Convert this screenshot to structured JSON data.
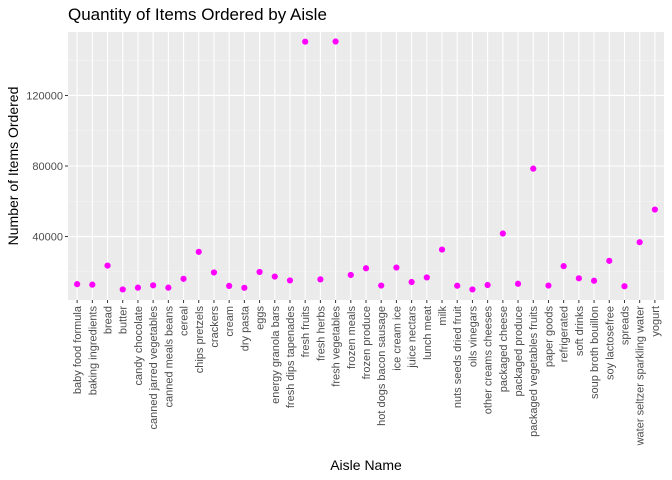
{
  "colors": {
    "panel": "#ebebeb",
    "grid_major": "#ffffff",
    "grid_minor": "#f4f4f4",
    "point": "#ff00ff",
    "tick": "#333333"
  },
  "chart_data": {
    "type": "scatter",
    "title": "Quantity of Items Ordered by Aisle",
    "xlabel": "Aisle Name",
    "ylabel": "Number of Items Ordered",
    "ylim": [
      4000,
      156000
    ],
    "yticks": [
      40000,
      80000,
      120000
    ],
    "ytick_labels": [
      "40000",
      "80000",
      "120000"
    ],
    "grid": true,
    "categories": [
      "baby food formula",
      "baking ingredients",
      "bread",
      "butter",
      "candy chocolate",
      "canned jarred vegetables",
      "canned meals beans",
      "cereal",
      "chips pretzels",
      "crackers",
      "cream",
      "dry pasta",
      "eggs",
      "energy granola bars",
      "fresh dips tapenades",
      "fresh fruits",
      "fresh herbs",
      "fresh vegetables",
      "frozen meals",
      "frozen produce",
      "hot dogs bacon sausage",
      "ice cream ice",
      "juice nectars",
      "lunch meat",
      "milk",
      "nuts seeds dried fruit",
      "oils vinegars",
      "other creams cheeses",
      "packaged cheese",
      "packaged produce",
      "packaged vegetables fruits",
      "paper goods",
      "refrigerated",
      "soft drinks",
      "soup broth bouillon",
      "soy lactosefree",
      "spreads",
      "water seltzer sparkling water",
      "yogurt"
    ],
    "values": [
      13000,
      12700,
      23500,
      10000,
      11000,
      12300,
      11000,
      16000,
      31300,
      19600,
      12000,
      10900,
      19900,
      17300,
      15100,
      150500,
      15700,
      150600,
      18200,
      22000,
      12200,
      22400,
      14200,
      16800,
      32600,
      12100,
      10000,
      12500,
      41700,
      13200,
      78500,
      12200,
      23200,
      16300,
      14900,
      26200,
      11800,
      36800,
      55300
    ]
  }
}
